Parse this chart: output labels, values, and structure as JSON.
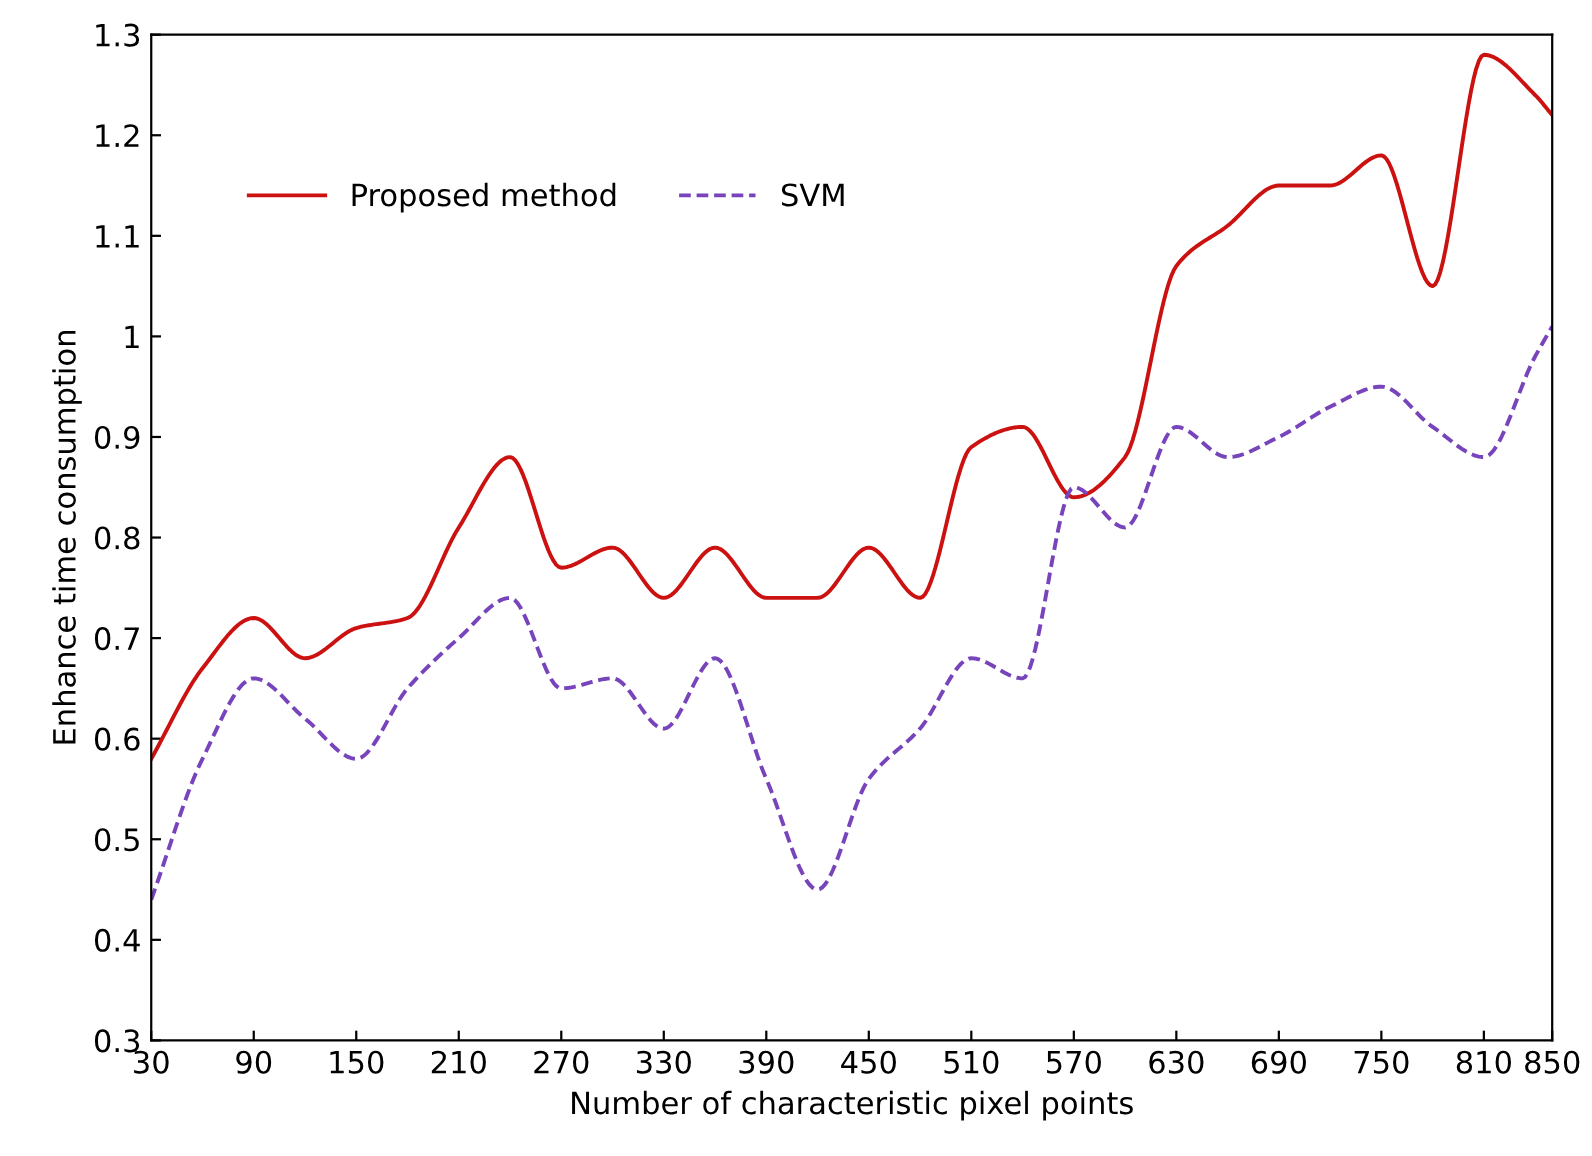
{
  "chart_data": {
    "type": "line",
    "xlabel": "Number of characteristic pixel points",
    "ylabel": "Enhance time consumption",
    "x": [
      30,
      60,
      90,
      120,
      150,
      180,
      210,
      240,
      270,
      300,
      330,
      360,
      390,
      420,
      450,
      480,
      510,
      540,
      570,
      600,
      630,
      660,
      690,
      720,
      750,
      780,
      810,
      840,
      850
    ],
    "series": [
      {
        "name": "Proposed method",
        "color": "#cc1111",
        "line_style": "solid",
        "values": [
          0.58,
          0.67,
          0.72,
          0.68,
          0.71,
          0.72,
          0.81,
          0.88,
          0.77,
          0.79,
          0.74,
          0.79,
          0.74,
          0.74,
          0.79,
          0.74,
          0.89,
          0.91,
          0.84,
          0.88,
          1.07,
          1.11,
          1.15,
          1.15,
          1.18,
          1.05,
          1.28,
          1.24,
          1.22
        ]
      },
      {
        "name": "SVM",
        "color": "#7744bb",
        "line_style": "dashed",
        "values": [
          0.44,
          0.58,
          0.66,
          0.62,
          0.58,
          0.65,
          0.7,
          0.74,
          0.65,
          0.66,
          0.61,
          0.68,
          0.56,
          0.45,
          0.56,
          0.61,
          0.68,
          0.66,
          0.85,
          0.81,
          0.91,
          0.88,
          0.9,
          0.93,
          0.95,
          0.91,
          0.88,
          0.98,
          1.01
        ]
      }
    ],
    "xlim": [
      30,
      850
    ],
    "xticks": [
      30,
      90,
      150,
      210,
      270,
      330,
      390,
      450,
      510,
      570,
      630,
      690,
      750,
      810,
      850
    ],
    "ylim": [
      0.3,
      1.3
    ],
    "yticks": [
      0.3,
      0.4,
      0.5,
      0.6,
      0.7,
      0.8,
      0.9,
      1,
      1.1,
      1.2,
      1.3
    ],
    "grid": false,
    "legend": "top left",
    "marker": "none"
  }
}
